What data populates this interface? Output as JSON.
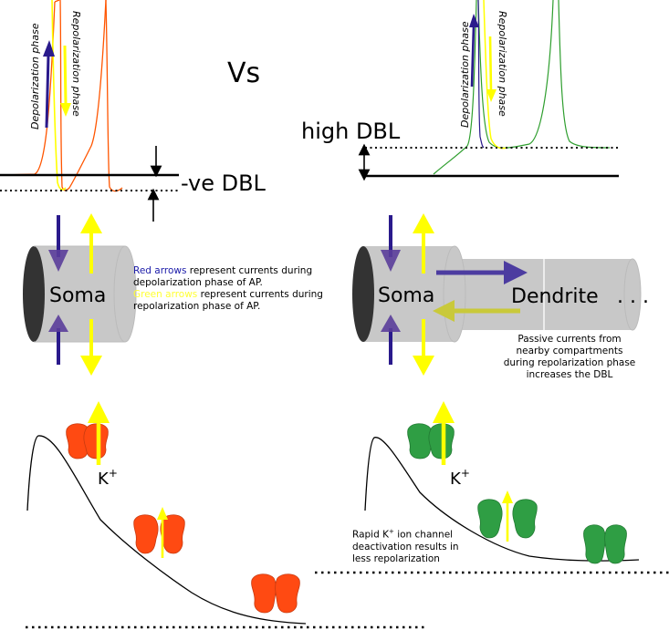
{
  "vs_label": "Vs",
  "left": {
    "depol_label": "Depolarization phase",
    "repol_label": "Repolarization phase",
    "dbl_label": "-ve DBL",
    "soma_label": "Soma",
    "legend": {
      "red_title": "Red arrows",
      "red_text": " represent currents during depolarization phase of AP.",
      "green_title": "Green arrows",
      "green_text": " represent currents during repolarization phase of AP."
    },
    "k_label": "K",
    "k_sup": "+"
  },
  "right": {
    "depol_label": "Depolarization phase",
    "repol_label": "Repolarization phase",
    "dbl_label": "high DBL",
    "soma_label": "Soma",
    "dendrite_label": "Dendrite",
    "dendrite_dots": ". . .",
    "passive_note": "Passive currents from nearby compartments during repolarization phase increases the DBL",
    "k_label": "K",
    "k_sup": "+",
    "rapid_note_1": "Rapid K",
    "rapid_note_sup": "+",
    "rapid_note_2": " ion channel deactivation results in less repolarization"
  },
  "colors": {
    "depol_arrow": "#2a1a8c",
    "repol_arrow": "#ffff00",
    "orange_trace": "#ff5500",
    "green_trace": "#2e9e2e",
    "red_channel": "#ff4a12",
    "green_channel": "#2f9e44",
    "cylinder": "#c8c8c8"
  }
}
